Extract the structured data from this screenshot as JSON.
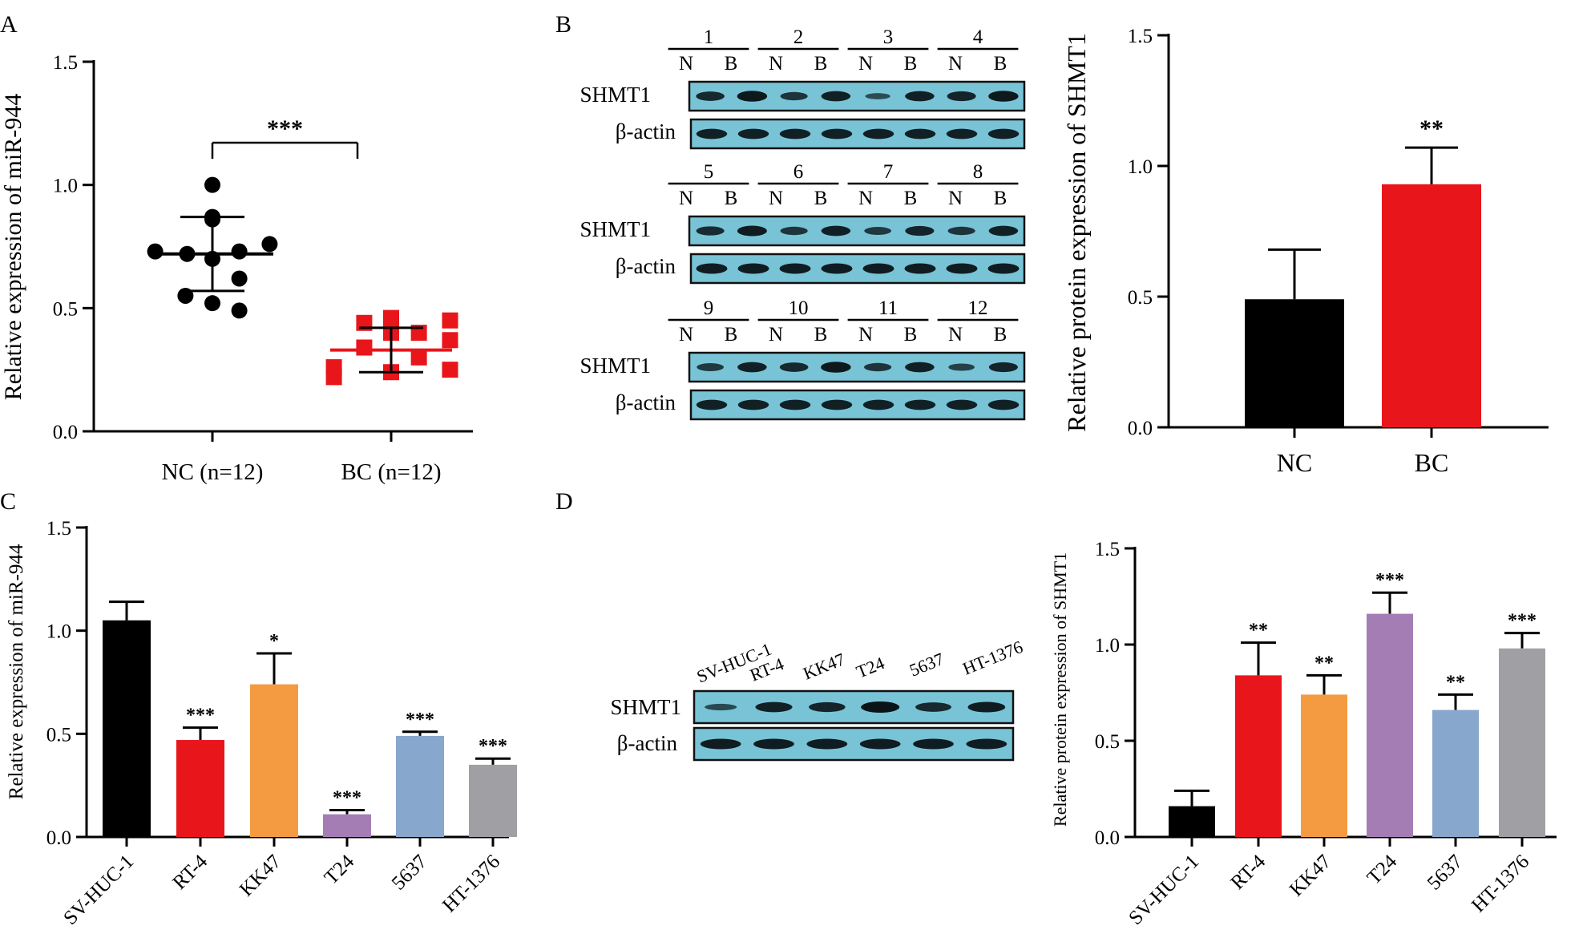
{
  "panels": [
    "A",
    "B",
    "C",
    "D"
  ],
  "blot_labels": {
    "target": "SHMT1",
    "control": "β-actin"
  },
  "chart_data": [
    {
      "id": "A",
      "type": "scatter",
      "ylabel": "Relative expression of miR-944",
      "ylim": [
        0,
        1.5
      ],
      "yticks": [
        "0.0",
        "0.5",
        "1.0",
        "1.5"
      ],
      "significance": "***",
      "groups": [
        {
          "name": "NC (n=12)",
          "color": "#000000",
          "marker": "circle",
          "mean": 0.72,
          "sd": 0.15,
          "values": [
            1.0,
            0.87,
            0.86,
            0.76,
            0.73,
            0.73,
            0.72,
            0.7,
            0.62,
            0.55,
            0.52,
            0.49
          ]
        },
        {
          "name": "BC (n=12)",
          "color": "#e8151b",
          "marker": "square",
          "mean": 0.33,
          "sd": 0.09,
          "values": [
            0.46,
            0.45,
            0.44,
            0.4,
            0.4,
            0.37,
            0.34,
            0.3,
            0.26,
            0.25,
            0.24,
            0.22
          ]
        }
      ]
    },
    {
      "id": "B",
      "type": "bar",
      "ylabel": "Relative protein expression of SHMT1",
      "ylim": [
        0,
        1.5
      ],
      "yticks": [
        "0.0",
        "0.5",
        "1.0",
        "1.5"
      ],
      "categories": [
        "NC",
        "BC"
      ],
      "values": [
        0.49,
        0.93
      ],
      "errors": [
        0.19,
        0.14
      ],
      "colors": [
        "#000000",
        "#e8151b"
      ],
      "significance": [
        "",
        "**"
      ]
    },
    {
      "id": "C",
      "type": "bar",
      "ylabel": "Relative expression of miR-944",
      "ylim": [
        0,
        1.5
      ],
      "yticks": [
        "0.0",
        "0.5",
        "1.0",
        "1.5"
      ],
      "categories": [
        "SV-HUC-1",
        "RT-4",
        "KK47",
        "T24",
        "5637",
        "HT-1376"
      ],
      "values": [
        1.05,
        0.47,
        0.74,
        0.11,
        0.49,
        0.35
      ],
      "errors": [
        0.09,
        0.06,
        0.15,
        0.02,
        0.02,
        0.03
      ],
      "colors": [
        "#000000",
        "#e8151b",
        "#f49b42",
        "#a57db5",
        "#87a7cd",
        "#a0a0a4"
      ],
      "significance": [
        "",
        "***",
        "*",
        "***",
        "***",
        "***"
      ]
    },
    {
      "id": "D",
      "type": "bar",
      "ylabel": "Relative protein expression of SHMT1",
      "ylim": [
        0,
        1.5
      ],
      "yticks": [
        "0.0",
        "0.5",
        "1.0",
        "1.5"
      ],
      "categories": [
        "SV-HUC-1",
        "RT-4",
        "KK47",
        "T24",
        "5637",
        "HT-1376"
      ],
      "values": [
        0.16,
        0.84,
        0.74,
        1.16,
        0.66,
        0.98
      ],
      "errors": [
        0.08,
        0.17,
        0.1,
        0.11,
        0.08,
        0.08
      ],
      "colors": [
        "#000000",
        "#e8151b",
        "#f49b42",
        "#a57db5",
        "#87a7cd",
        "#a0a0a4"
      ],
      "significance": [
        "",
        "**",
        "**",
        "***",
        "**",
        "***"
      ]
    }
  ],
  "western_blots": {
    "B": {
      "rows": [
        {
          "pairs": [
            "1",
            "2",
            "3",
            "4"
          ],
          "lane_labels": [
            "N",
            "B",
            "N",
            "B",
            "N",
            "B",
            "N",
            "B"
          ],
          "shmt1": [
            0.75,
            0.95,
            0.6,
            0.85,
            0.3,
            0.85,
            0.8,
            0.95
          ],
          "actin": [
            0.85,
            0.85,
            0.85,
            0.85,
            0.85,
            0.85,
            0.85,
            0.85
          ]
        },
        {
          "pairs": [
            "5",
            "6",
            "7",
            "8"
          ],
          "lane_labels": [
            "N",
            "B",
            "N",
            "B",
            "N",
            "B",
            "N",
            "B"
          ],
          "shmt1": [
            0.7,
            0.9,
            0.6,
            0.85,
            0.55,
            0.8,
            0.6,
            0.85
          ],
          "actin": [
            0.9,
            0.9,
            0.9,
            0.9,
            0.9,
            0.9,
            0.9,
            0.9
          ]
        },
        {
          "pairs": [
            "9",
            "10",
            "11",
            "12"
          ],
          "lane_labels": [
            "N",
            "B",
            "N",
            "B",
            "N",
            "B",
            "N",
            "B"
          ],
          "shmt1": [
            0.55,
            0.85,
            0.75,
            0.95,
            0.6,
            0.85,
            0.45,
            0.8
          ],
          "actin": [
            0.85,
            0.85,
            0.85,
            0.85,
            0.85,
            0.85,
            0.85,
            0.85
          ]
        }
      ]
    },
    "D": {
      "lanes": [
        "SV-HUC-1",
        "RT-4",
        "KK47",
        "T24",
        "5637",
        "HT-1376"
      ],
      "shmt1": [
        0.35,
        0.85,
        0.8,
        1.0,
        0.75,
        0.9
      ],
      "actin": [
        0.9,
        0.9,
        0.9,
        0.9,
        0.9,
        0.9
      ]
    }
  }
}
